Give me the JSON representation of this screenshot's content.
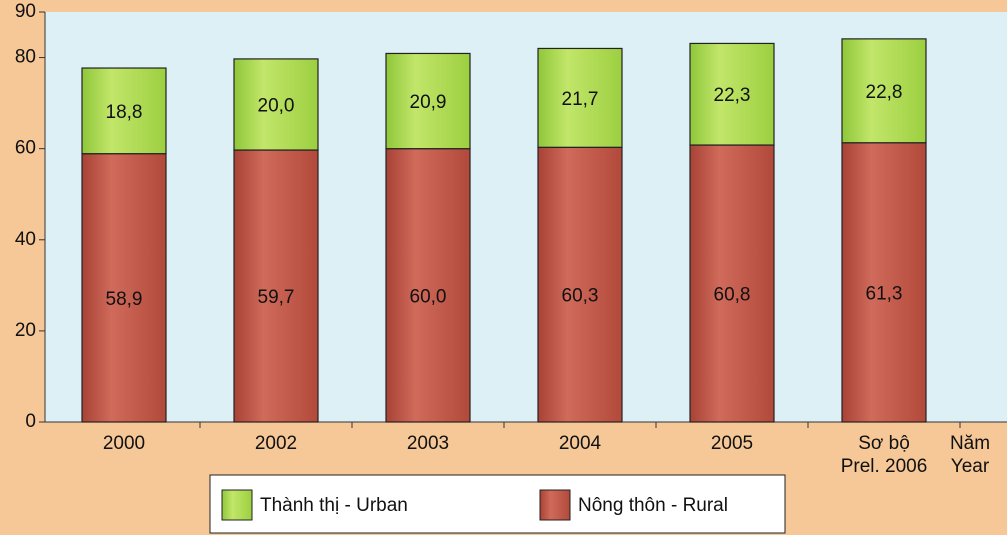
{
  "chart_data": {
    "type": "stacked_bar",
    "categories": [
      "2000",
      "2002",
      "2003",
      "2004",
      "2005",
      "Sơ bộ Prel. 2006"
    ],
    "x_axis_label": "Năm Year",
    "series": [
      {
        "name": "Nông thôn - Rural",
        "color": "#c45a4c",
        "values": [
          58.9,
          59.7,
          60.0,
          60.3,
          60.8,
          61.3
        ],
        "value_labels": [
          "58,9",
          "59,7",
          "60,0",
          "60,3",
          "60,8",
          "61,3"
        ]
      },
      {
        "name": "Thành thị - Urban",
        "color": "#a9d84a",
        "values": [
          18.8,
          20.0,
          20.9,
          21.7,
          22.3,
          22.8
        ],
        "value_labels": [
          "18,8",
          "20,0",
          "20,9",
          "21,7",
          "22,3",
          "22,8"
        ]
      }
    ],
    "ylim": [
      0,
      90
    ],
    "yticks": [
      0,
      20,
      40,
      60,
      80,
      90
    ]
  }
}
